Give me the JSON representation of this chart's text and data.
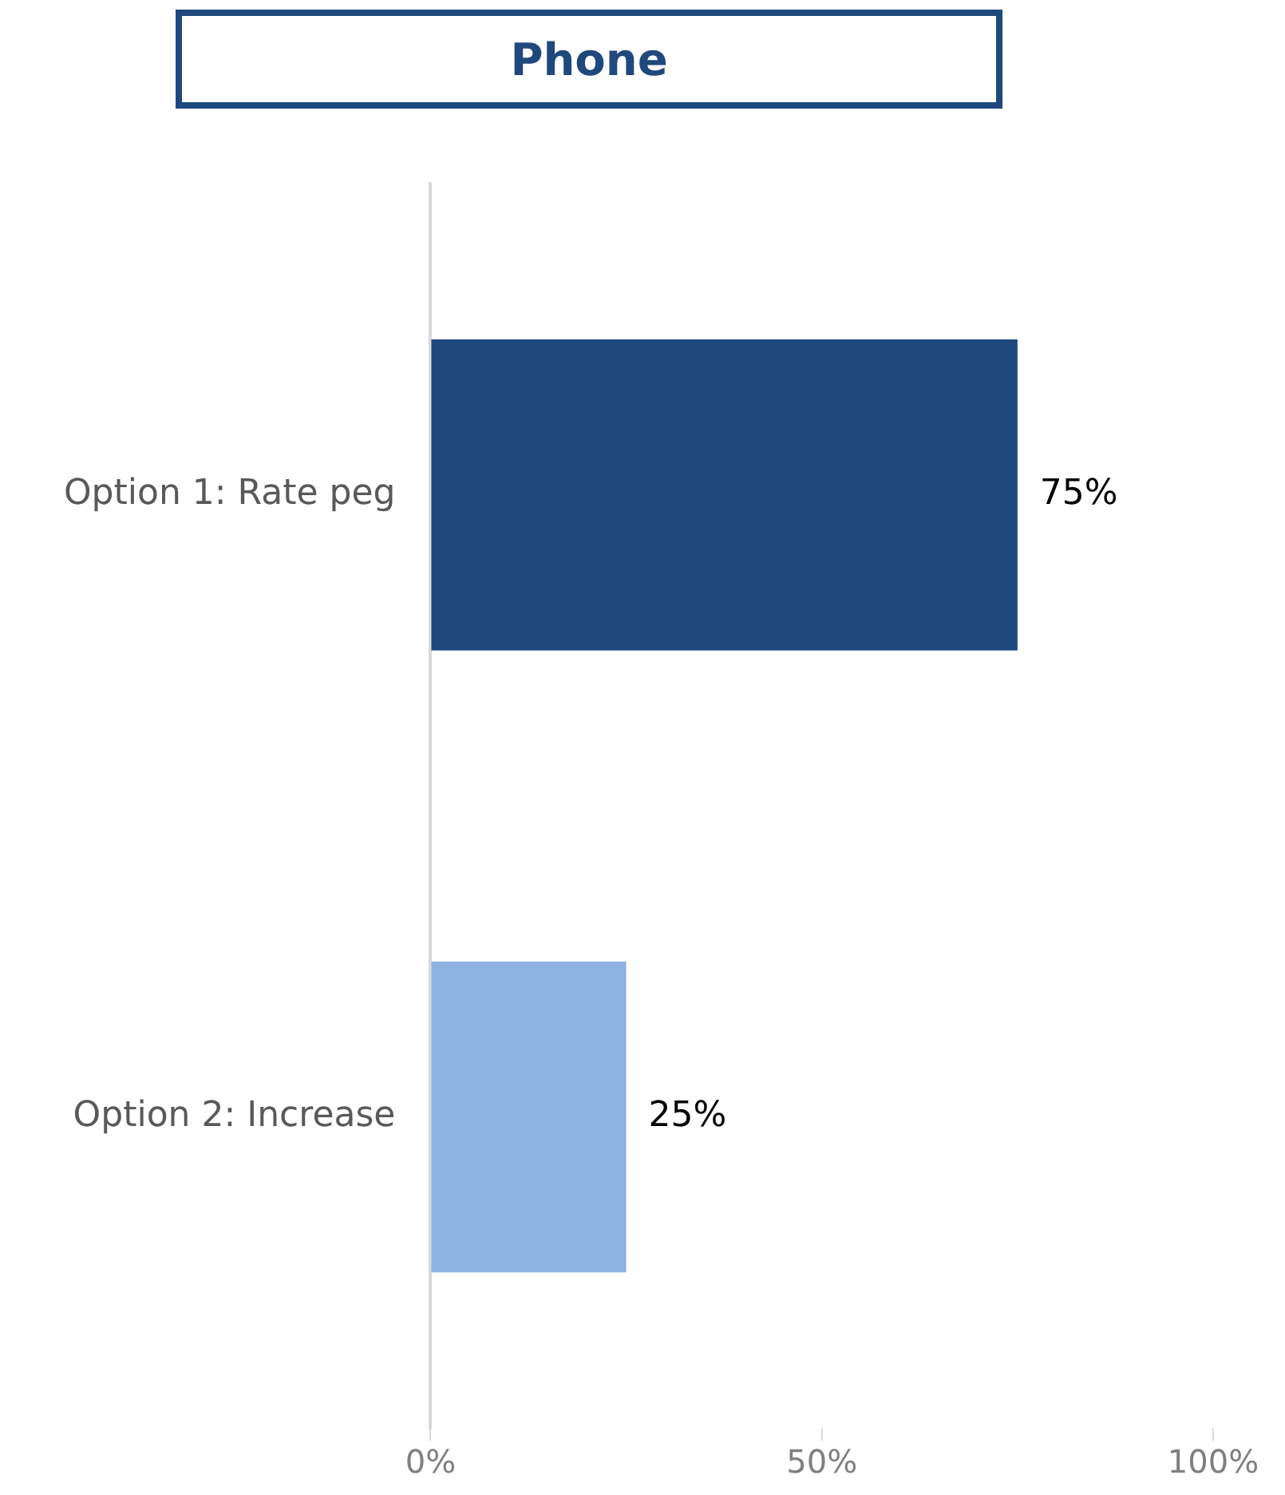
{
  "chart_data": {
    "type": "bar",
    "orientation": "horizontal",
    "title": "Phone",
    "categories": [
      "Option 1: Rate peg",
      "Option 2: Increase"
    ],
    "values": [
      75,
      25
    ],
    "colors": [
      "#1f497d",
      "#8db3e2"
    ],
    "value_labels": [
      "75%",
      "25%"
    ],
    "xlim": [
      0,
      100
    ],
    "xticks": [
      {
        "value": 0,
        "label": "0%"
      },
      {
        "value": 50,
        "label": "50%"
      },
      {
        "value": 100,
        "label": "100%"
      }
    ],
    "grid": false,
    "legend": false
  }
}
